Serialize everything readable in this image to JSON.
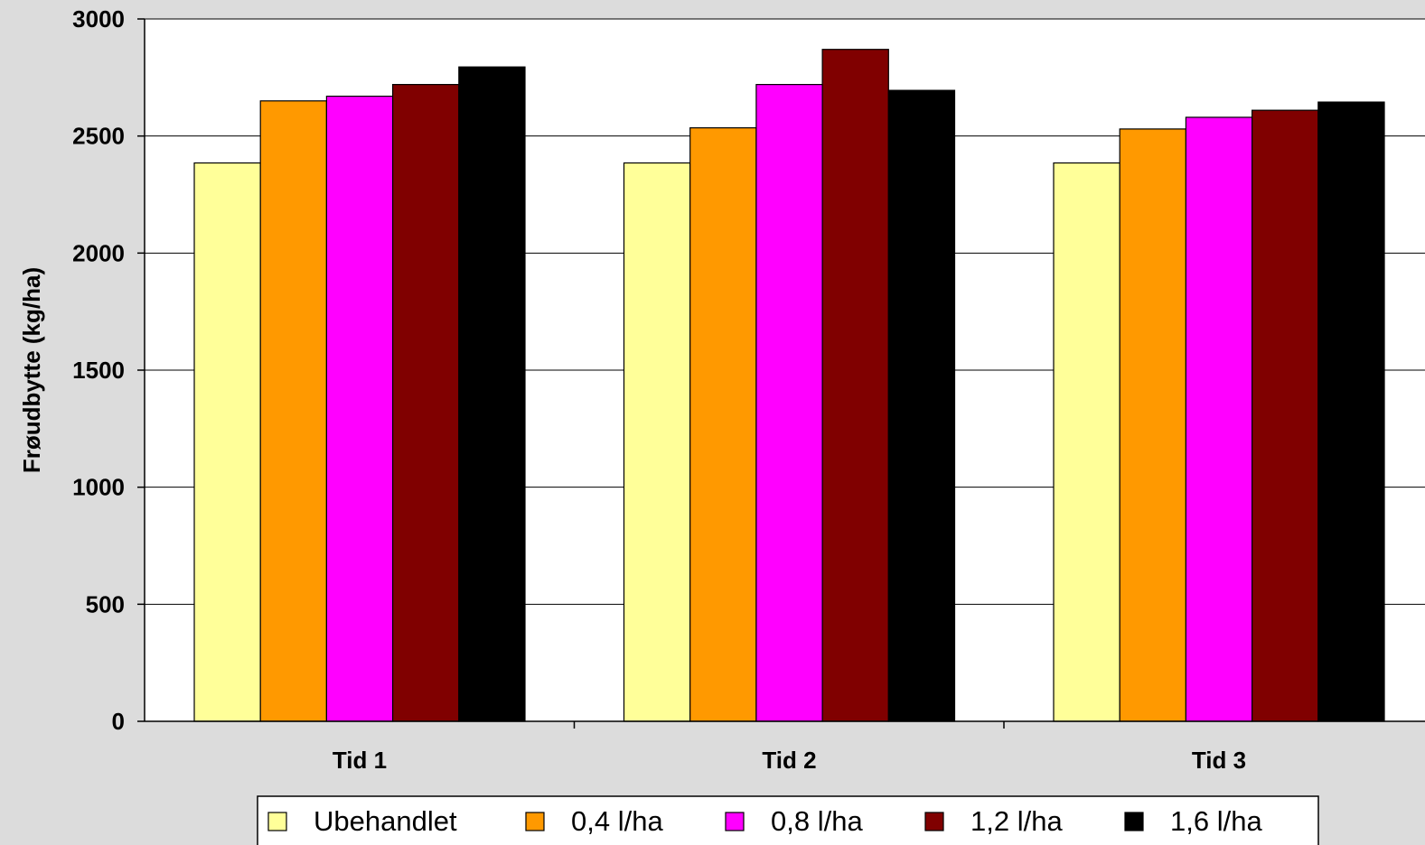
{
  "chart_data": {
    "type": "bar",
    "title": "",
    "xlabel": "",
    "ylabel": "Frøudbytte (kg/ha)",
    "ylim": [
      0,
      3000
    ],
    "yticks": [
      0,
      500,
      1000,
      1500,
      2000,
      2500,
      3000
    ],
    "grid": true,
    "legend_position": "bottom",
    "background_color": "#dcdcdc",
    "plot_background_color": "#ffffff",
    "categories": [
      "Tid 1",
      "Tid 2",
      "Tid 3"
    ],
    "series": [
      {
        "name": "Ubehandlet",
        "color": "#ffff99",
        "values": [
          2385,
          2385,
          2385
        ]
      },
      {
        "name": "0,4 l/ha",
        "color": "#ff9900",
        "values": [
          2650,
          2535,
          2530
        ]
      },
      {
        "name": "0,8 l/ha",
        "color": "#ff00ff",
        "values": [
          2670,
          2720,
          2580
        ]
      },
      {
        "name": "1,2 l/ha",
        "color": "#800000",
        "values": [
          2720,
          2870,
          2610
        ]
      },
      {
        "name": "1,6 l/ha",
        "color": "#000000",
        "values": [
          2795,
          2695,
          2645
        ]
      }
    ]
  }
}
